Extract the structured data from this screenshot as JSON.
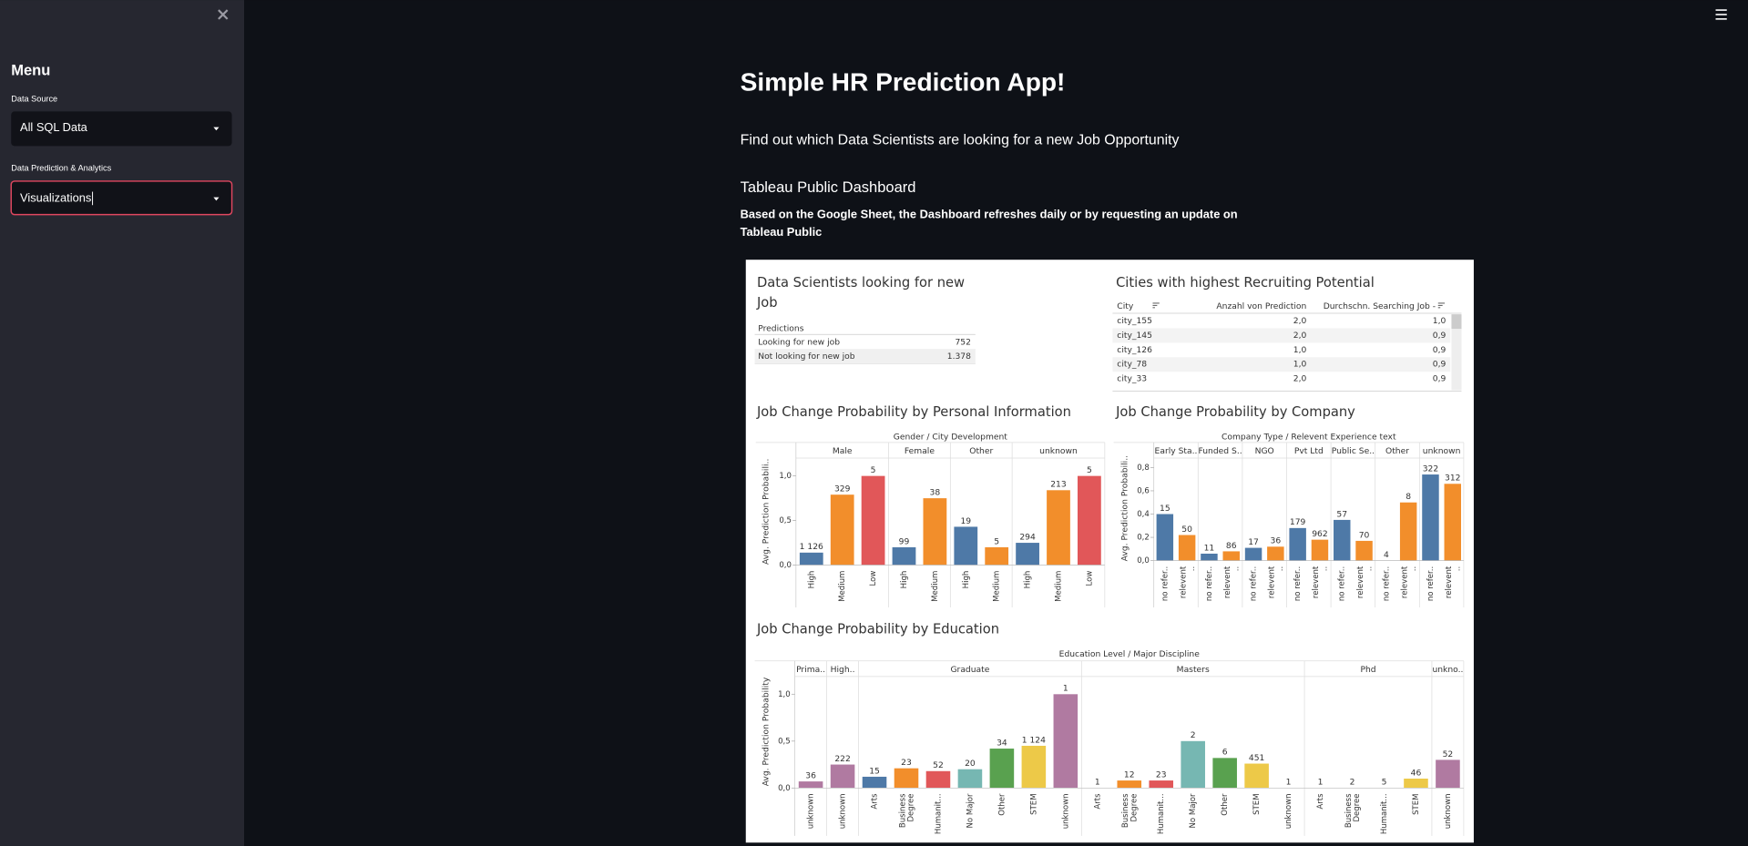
{
  "sidebar": {
    "title": "Menu",
    "fields": [
      {
        "label": "Data Source",
        "value": "All SQL Data"
      },
      {
        "label": "Data Prediction & Analytics",
        "value": "Visualizations"
      }
    ]
  },
  "main": {
    "title": "Simple HR Prediction App!",
    "subtitle": "Find out which Data Scientists are looking for a new Job Opportunity",
    "section": "Tableau Public Dashboard",
    "caption": "Based on the Google Sheet, the Dashboard refreshes daily or by requesting an update on Tableau Public"
  },
  "dashboard": {
    "predictions": {
      "title": "Data Scientists looking for new Job",
      "header": "Predictions",
      "rows": [
        [
          "Looking for new job",
          "752"
        ],
        [
          "Not looking for new job",
          "1.378"
        ]
      ]
    },
    "cities": {
      "title": "Cities with highest Recruiting Potential",
      "columns": [
        "City",
        "Anzahl von Prediction",
        "Durchschn. Searching Job -"
      ],
      "rows": [
        [
          "city_155",
          "2,0",
          "1,0"
        ],
        [
          "city_145",
          "2,0",
          "0,9"
        ],
        [
          "city_126",
          "1,0",
          "0,9"
        ],
        [
          "city_78",
          "1,0",
          "0,9"
        ],
        [
          "city_33",
          "2,0",
          "0,9"
        ]
      ]
    },
    "charts": [
      {
        "type": "bar",
        "title": "Job Change Probability by Personal Information",
        "header": "Gender / City Development",
        "y_label": "Avg. Prediction Probabili..",
        "ylim": [
          0,
          1.2
        ],
        "yticks": [
          {
            "value": 0,
            "label": "0,0"
          },
          {
            "value": 0.5,
            "label": "0,5"
          },
          {
            "value": 1,
            "label": "1,0"
          }
        ],
        "groups": [
          {
            "name": "Male",
            "bars": [
              {
                "category": "High",
                "value": 0.14,
                "count": "1 126",
                "color": "#4e79a7"
              },
              {
                "category": "Medium",
                "value": 0.79,
                "count": "329",
                "color": "#f28e2b"
              },
              {
                "category": "Low",
                "value": 1.0,
                "count": "5",
                "color": "#e15759"
              }
            ]
          },
          {
            "name": "Female",
            "bars": [
              {
                "category": "High",
                "value": 0.2,
                "count": "99",
                "color": "#4e79a7"
              },
              {
                "category": "Medium",
                "value": 0.75,
                "count": "38",
                "color": "#f28e2b"
              }
            ]
          },
          {
            "name": "Other",
            "bars": [
              {
                "category": "High",
                "value": 0.43,
                "count": "19",
                "color": "#4e79a7"
              },
              {
                "category": "Medium",
                "value": 0.2,
                "count": "5",
                "color": "#f28e2b"
              }
            ]
          },
          {
            "name": "unknown",
            "bars": [
              {
                "category": "High",
                "value": 0.25,
                "count": "294",
                "color": "#4e79a7"
              },
              {
                "category": "Medium",
                "value": 0.84,
                "count": "213",
                "color": "#f28e2b"
              },
              {
                "category": "Low",
                "value": 1.0,
                "count": "5",
                "color": "#e15759"
              }
            ]
          }
        ]
      },
      {
        "type": "bar",
        "title": "Job Change Probability by Company",
        "header": "Company Type / Relevent Experience text",
        "y_label": "Avg. Prediction Probabili..",
        "ylim": [
          0,
          0.9
        ],
        "yticks": [
          {
            "value": 0,
            "label": "0,0"
          },
          {
            "value": 0.2,
            "label": "0,2"
          },
          {
            "value": 0.4,
            "label": "0,4"
          },
          {
            "value": 0.6,
            "label": "0,6"
          },
          {
            "value": 0.8,
            "label": "0,8"
          }
        ],
        "groups": [
          {
            "name": "Early Sta..",
            "bars": [
              {
                "category": "no refer..",
                "value": 0.4,
                "count": "15",
                "color": "#4e79a7"
              },
              {
                "category": "relevent ..",
                "value": 0.22,
                "count": "50",
                "color": "#f28e2b"
              }
            ]
          },
          {
            "name": "Funded S..",
            "bars": [
              {
                "category": "no refer..",
                "value": 0.06,
                "count": "11",
                "color": "#4e79a7"
              },
              {
                "category": "relevent ..",
                "value": 0.08,
                "count": "86",
                "color": "#f28e2b"
              }
            ]
          },
          {
            "name": "NGO",
            "bars": [
              {
                "category": "no refer..",
                "value": 0.11,
                "count": "17",
                "color": "#4e79a7"
              },
              {
                "category": "relevent ..",
                "value": 0.12,
                "count": "36",
                "color": "#f28e2b"
              }
            ]
          },
          {
            "name": "Pvt Ltd",
            "bars": [
              {
                "category": "no refer..",
                "value": 0.28,
                "count": "179",
                "color": "#4e79a7"
              },
              {
                "category": "relevent ..",
                "value": 0.18,
                "count": "962",
                "color": "#f28e2b"
              }
            ]
          },
          {
            "name": "Public Se..",
            "bars": [
              {
                "category": "no refer..",
                "value": 0.35,
                "count": "57",
                "color": "#4e79a7"
              },
              {
                "category": "relevent ..",
                "value": 0.17,
                "count": "70",
                "color": "#f28e2b"
              }
            ]
          },
          {
            "name": "Other",
            "bars": [
              {
                "category": "no refer..",
                "value": 0,
                "count": "4",
                "color": "#4e79a7"
              },
              {
                "category": "relevent ..",
                "value": 0.5,
                "count": "8",
                "color": "#f28e2b"
              }
            ]
          },
          {
            "name": "unknown",
            "bars": [
              {
                "category": "no refer..",
                "value": 0.74,
                "count": "322",
                "color": "#4e79a7"
              },
              {
                "category": "relevent ..",
                "value": 0.66,
                "count": "312",
                "color": "#f28e2b"
              }
            ]
          }
        ]
      },
      {
        "type": "bar",
        "title": "Job Change Probability by Education",
        "header": "Education Level / Major Discipline",
        "y_label": "Avg. Prediction Probability",
        "ylim": [
          0,
          1.2
        ],
        "yticks": [
          {
            "value": 0,
            "label": "0,0"
          },
          {
            "value": 0.5,
            "label": "0,5"
          },
          {
            "value": 1,
            "label": "1,0"
          }
        ],
        "groups": [
          {
            "name": "Prima..",
            "bars": [
              {
                "category": "unknown",
                "value": 0.07,
                "count": "36",
                "color": "#b07aa1"
              }
            ]
          },
          {
            "name": "High..",
            "bars": [
              {
                "category": "unknown",
                "value": 0.25,
                "count": "222",
                "color": "#b07aa1"
              }
            ]
          },
          {
            "name": "Graduate",
            "bars": [
              {
                "category": "Arts",
                "value": 0.12,
                "count": "15",
                "color": "#4e79a7"
              },
              {
                "category": "Business Degree",
                "value": 0.21,
                "count": "23",
                "color": "#f28e2b"
              },
              {
                "category": "Humanit...",
                "value": 0.18,
                "count": "52",
                "color": "#e15759"
              },
              {
                "category": "No Major",
                "value": 0.2,
                "count": "20",
                "color": "#76b7b2"
              },
              {
                "category": "Other",
                "value": 0.42,
                "count": "34",
                "color": "#59a14f"
              },
              {
                "category": "STEM",
                "value": 0.45,
                "count": "1 124",
                "color": "#edc948"
              },
              {
                "category": "unknown",
                "value": 1.0,
                "count": "1",
                "color": "#b07aa1"
              }
            ]
          },
          {
            "name": "Masters",
            "bars": [
              {
                "category": "Arts",
                "value": 0,
                "count": "1",
                "color": "#4e79a7"
              },
              {
                "category": "Business Degree",
                "value": 0.08,
                "count": "12",
                "color": "#f28e2b"
              },
              {
                "category": "Humanit...",
                "value": 0.08,
                "count": "23",
                "color": "#e15759"
              },
              {
                "category": "No Major",
                "value": 0.5,
                "count": "2",
                "color": "#76b7b2"
              },
              {
                "category": "Other",
                "value": 0.32,
                "count": "6",
                "color": "#59a14f"
              },
              {
                "category": "STEM",
                "value": 0.26,
                "count": "451",
                "color": "#edc948"
              },
              {
                "category": "unknown",
                "value": 0,
                "count": "1",
                "color": "#b07aa1"
              }
            ]
          },
          {
            "name": "Phd",
            "bars": [
              {
                "category": "Arts",
                "value": 0,
                "count": "1",
                "color": "#4e79a7"
              },
              {
                "category": "Business Degree",
                "value": 0,
                "count": "2",
                "color": "#f28e2b"
              },
              {
                "category": "Humanit...",
                "value": 0,
                "count": "5",
                "color": "#e15759"
              },
              {
                "category": "STEM",
                "value": 0.1,
                "count": "46",
                "color": "#edc948"
              }
            ]
          },
          {
            "name": "unkno..",
            "bars": [
              {
                "category": "unknown",
                "value": 0.3,
                "count": "52",
                "color": "#b07aa1"
              }
            ]
          }
        ]
      }
    ]
  }
}
